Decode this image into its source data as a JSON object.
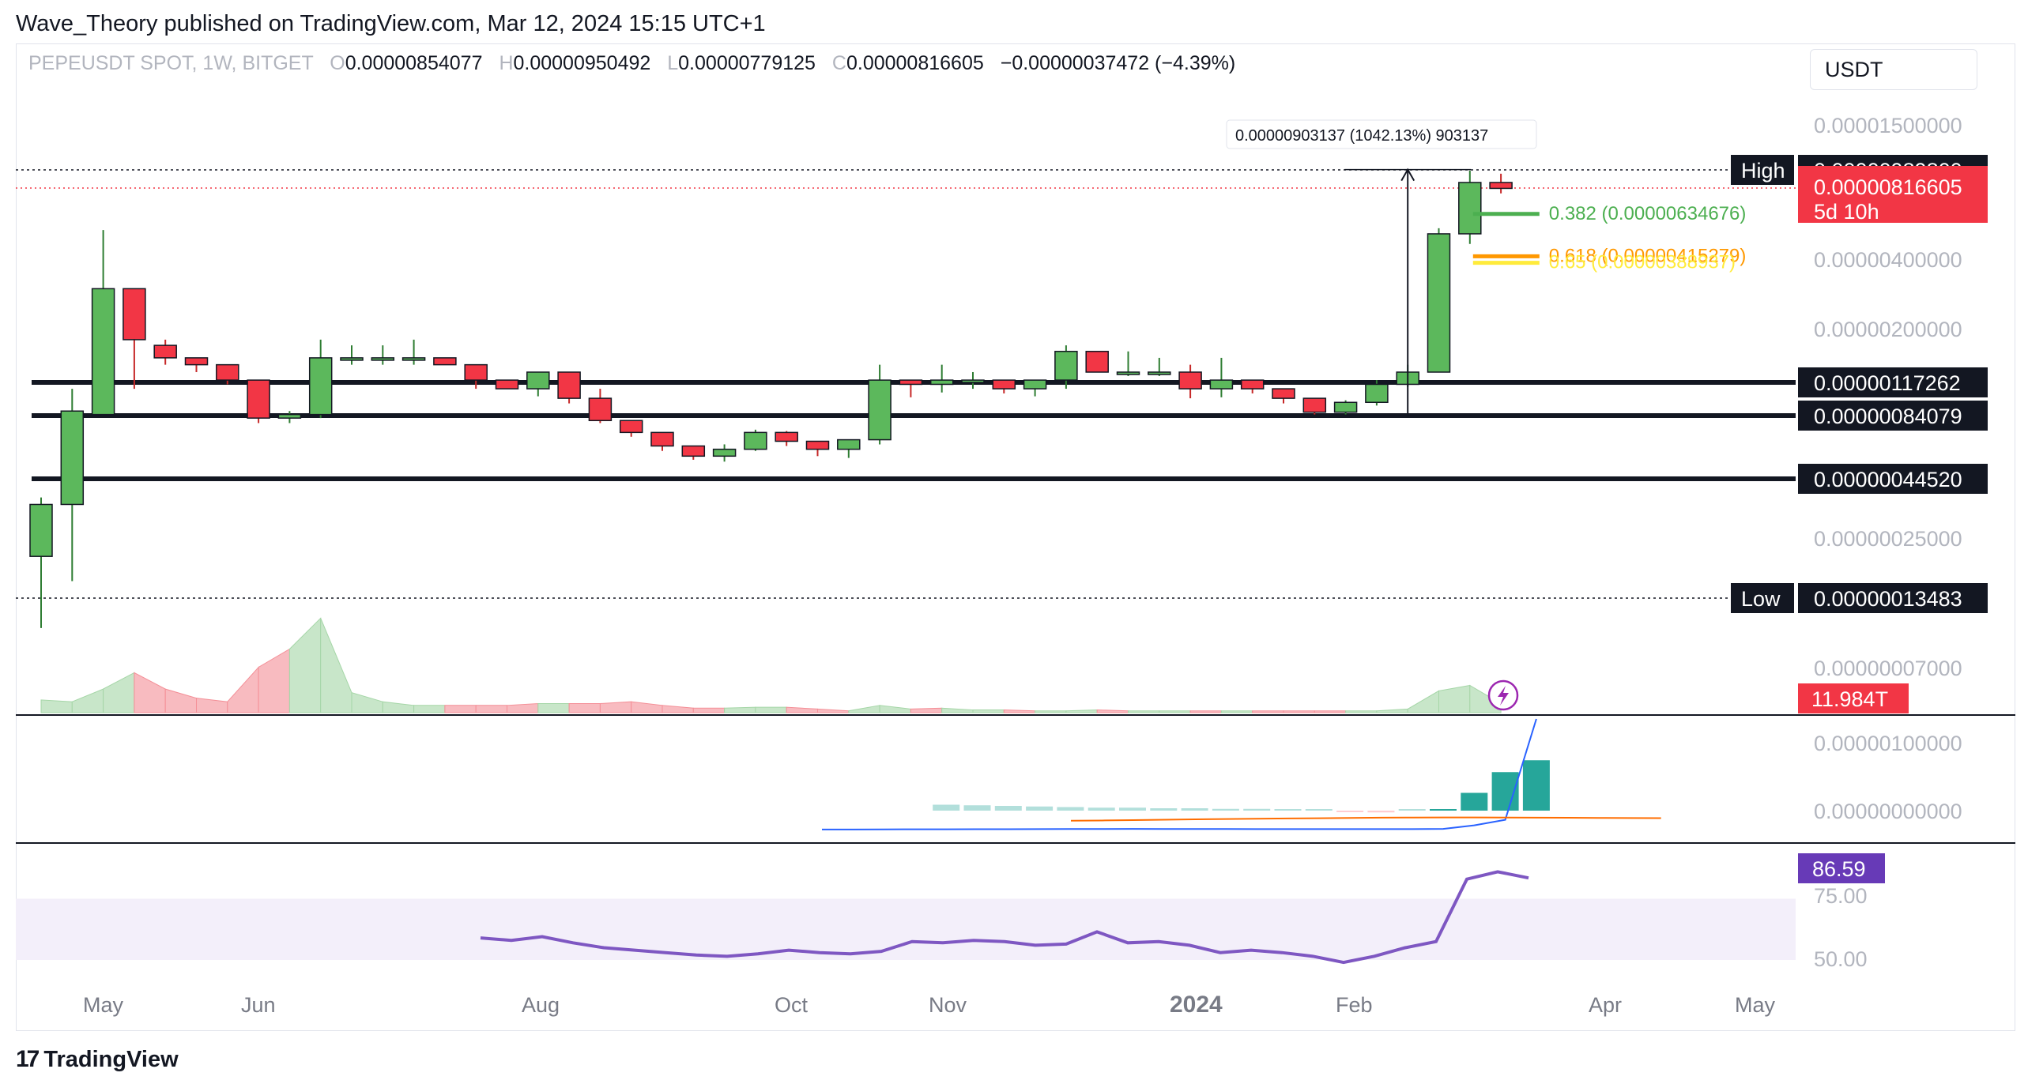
{
  "header": {
    "publisher_line": "Wave_Theory published on TradingView.com, Mar 12, 2024 15:15 UTC+1"
  },
  "symbol_bar": {
    "symbol": "PEPEUSDT SPOT, 1W, BITGET",
    "o_label": "O",
    "o_value": "0.00000854077",
    "h_label": "H",
    "h_value": "0.00000950492",
    "l_label": "L",
    "l_value": "0.00000779125",
    "c_label": "C",
    "c_value": "0.00000816605",
    "change": "−0.00000037472 (−4.39%)"
  },
  "currency": "USDT",
  "footer": {
    "logo_icon": "tradingview-logo-icon",
    "brand": "TradingView"
  },
  "colors": {
    "up": "#5cb85c",
    "down": "#f23645",
    "fib382": "#4caf50",
    "fib618": "#ff9800",
    "fib_other": "#ffeb3b",
    "rsi": "#7e57c2",
    "macd": "#2962ff",
    "signal": "#ff6d00",
    "hist": "#26a69a"
  },
  "chart_data": {
    "type": "candlestick",
    "scale": "log",
    "y_tick_labels": [
      "0.00001500000",
      "0.00000400000",
      "0.00000200000",
      "0.00000025000",
      "0.00000007000"
    ],
    "x_tick_labels": [
      "May",
      "Jun",
      "Aug",
      "Oct",
      "Nov",
      "2024",
      "Feb",
      "Apr",
      "May"
    ],
    "candles": [
      {
        "o": 2.05e-07,
        "h": 3.7e-07,
        "l": 1e-07,
        "c": 3.45e-07
      },
      {
        "o": 3.45e-07,
        "h": 1.1e-06,
        "l": 1.6e-07,
        "c": 8.8e-07
      },
      {
        "o": 8.5e-07,
        "h": 5.4e-06,
        "l": 8.5e-07,
        "c": 3e-06
      },
      {
        "o": 3e-06,
        "h": 3e-06,
        "l": 1.1e-06,
        "c": 1.8e-06
      },
      {
        "o": 1.7e-06,
        "h": 1.8e-06,
        "l": 1.4e-06,
        "c": 1.5e-06
      },
      {
        "o": 1.5e-06,
        "h": 1.5e-06,
        "l": 1.3e-06,
        "c": 1.4e-06
      },
      {
        "o": 1.4e-06,
        "h": 1.4e-06,
        "l": 1.15e-06,
        "c": 1.2e-06
      },
      {
        "o": 1.2e-06,
        "h": 1.2e-06,
        "l": 7.8e-07,
        "c": 8.2e-07
      },
      {
        "o": 8.2e-07,
        "h": 8.8e-07,
        "l": 7.8e-07,
        "c": 8.5e-07
      },
      {
        "o": 8.5e-07,
        "h": 1.8e-06,
        "l": 8.2e-07,
        "c": 1.5e-06
      },
      {
        "o": 1.5e-06,
        "h": 1.7e-06,
        "l": 1.4e-06,
        "c": 1.5e-06
      },
      {
        "o": 1.5e-06,
        "h": 1.7e-06,
        "l": 1.4e-06,
        "c": 1.5e-06
      },
      {
        "o": 1.5e-06,
        "h": 1.8e-06,
        "l": 1.4e-06,
        "c": 1.5e-06
      },
      {
        "o": 1.5e-06,
        "h": 1.5e-06,
        "l": 1.4e-06,
        "c": 1.4e-06
      },
      {
        "o": 1.4e-06,
        "h": 1.4e-06,
        "l": 1.1e-06,
        "c": 1.2e-06
      },
      {
        "o": 1.2e-06,
        "h": 1.2e-06,
        "l": 1.1e-06,
        "c": 1.1e-06
      },
      {
        "o": 1.1e-06,
        "h": 1.3e-06,
        "l": 1.02e-06,
        "c": 1.3e-06
      },
      {
        "o": 1.3e-06,
        "h": 1.3e-06,
        "l": 9.5e-07,
        "c": 1e-06
      },
      {
        "o": 1e-06,
        "h": 1.1e-06,
        "l": 7.8e-07,
        "c": 8e-07
      },
      {
        "o": 8e-07,
        "h": 8e-07,
        "l": 6.8e-07,
        "c": 7.1e-07
      },
      {
        "o": 7.1e-07,
        "h": 7.1e-07,
        "l": 5.9e-07,
        "c": 6.2e-07
      },
      {
        "o": 6.2e-07,
        "h": 6.2e-07,
        "l": 5.4e-07,
        "c": 5.6e-07
      },
      {
        "o": 5.6e-07,
        "h": 6.3e-07,
        "l": 5.3e-07,
        "c": 6e-07
      },
      {
        "o": 6e-07,
        "h": 7.3e-07,
        "l": 5.9e-07,
        "c": 7.1e-07
      },
      {
        "o": 7.1e-07,
        "h": 7.2e-07,
        "l": 6.2e-07,
        "c": 6.5e-07
      },
      {
        "o": 6.5e-07,
        "h": 6.5e-07,
        "l": 5.6e-07,
        "c": 6e-07
      },
      {
        "o": 6e-07,
        "h": 6.5e-07,
        "l": 5.5e-07,
        "c": 6.6e-07
      },
      {
        "o": 6.6e-07,
        "h": 1.4e-06,
        "l": 6.3e-07,
        "c": 1.2e-06
      },
      {
        "o": 1.2e-06,
        "h": 1.2e-06,
        "l": 1.01e-06,
        "c": 1.15e-06
      },
      {
        "o": 1.15e-06,
        "h": 1.4e-06,
        "l": 1.06e-06,
        "c": 1.2e-06
      },
      {
        "o": 1.2e-06,
        "h": 1.3e-06,
        "l": 1.1e-06,
        "c": 1.2e-06
      },
      {
        "o": 1.2e-06,
        "h": 1.2e-06,
        "l": 1.05e-06,
        "c": 1.1e-06
      },
      {
        "o": 1.1e-06,
        "h": 1.2e-06,
        "l": 1.02e-06,
        "c": 1.2e-06
      },
      {
        "o": 1.2e-06,
        "h": 1.7e-06,
        "l": 1.1e-06,
        "c": 1.6e-06
      },
      {
        "o": 1.6e-06,
        "h": 1.6e-06,
        "l": 1.3e-06,
        "c": 1.3e-06
      },
      {
        "o": 1.3e-06,
        "h": 1.6e-06,
        "l": 1.25e-06,
        "c": 1.3e-06
      },
      {
        "o": 1.3e-06,
        "h": 1.5e-06,
        "l": 1.25e-06,
        "c": 1.3e-06
      },
      {
        "o": 1.3e-06,
        "h": 1.4e-06,
        "l": 1e-06,
        "c": 1.1e-06
      },
      {
        "o": 1.1e-06,
        "h": 1.5e-06,
        "l": 1.01e-06,
        "c": 1.2e-06
      },
      {
        "o": 1.2e-06,
        "h": 1.2e-06,
        "l": 1.05e-06,
        "c": 1.1e-06
      },
      {
        "o": 1.1e-06,
        "h": 1.1e-06,
        "l": 9.5e-07,
        "c": 1e-06
      },
      {
        "o": 1e-06,
        "h": 1e-06,
        "l": 8.5e-07,
        "c": 8.7e-07
      },
      {
        "o": 8.7e-07,
        "h": 9.8e-07,
        "l": 8.5e-07,
        "c": 9.6e-07
      },
      {
        "o": 9.6e-07,
        "h": 1.2e-06,
        "l": 9.3e-07,
        "c": 1.15e-06
      },
      {
        "o": 1.15e-06,
        "h": 1.4e-06,
        "l": 1.12e-06,
        "c": 1.3e-06
      },
      {
        "o": 1.3e-06,
        "h": 5.5e-06,
        "l": 1.3e-06,
        "c": 5.2e-06
      },
      {
        "o": 5.2e-06,
        "h": 9.8e-06,
        "l": 4.7e-06,
        "c": 8.7e-06
      },
      {
        "o": 8.7e-06,
        "h": 9.5e-06,
        "l": 7.8e-06,
        "c": 8.2e-06
      }
    ],
    "volume": [
      0.07,
      0.06,
      0.13,
      0.22,
      0.13,
      0.08,
      0.06,
      0.25,
      0.35,
      0.52,
      0.11,
      0.06,
      0.04,
      0.04,
      0.04,
      0.04,
      0.05,
      0.05,
      0.05,
      0.06,
      0.04,
      0.025,
      0.025,
      0.03,
      0.03,
      0.02,
      0.01,
      0.04,
      0.02,
      0.025,
      0.015,
      0.015,
      0.01,
      0.01,
      0.015,
      0.01,
      0.01,
      0.01,
      0.01,
      0.01,
      0.01,
      0.01,
      0.01,
      0.01,
      0.02,
      0.12,
      0.15,
      0.05
    ],
    "volume_last_label": "11.984T",
    "macd": {
      "line": [
        9e-09,
        1.2e-08,
        1.8e-08,
        2.3e-08,
        2.8e-08,
        3.2e-08,
        3.5e-08,
        4e-08,
        4.8e-08,
        5.2e-08,
        5.3e-08,
        5.2e-08,
        5e-08,
        4.7e-08,
        4.4e-08,
        4.3e-08,
        4.2e-08,
        4e-08,
        3.8e-08,
        3.7e-08,
        5.5e-08,
        3.5e-07,
        8e-07,
        1.05e-05
      ],
      "signal": [
        1e-08,
        1.3e-08,
        1.7e-08,
        2.1e-08,
        2.5e-08,
        2.8e-08,
        3.1e-08,
        3.4e-08,
        3.6e-08,
        4e-08,
        4.3e-08,
        4.4e-08,
        4.5e-08,
        4.5e-08,
        4.4e-08,
        4.3e-08,
        4.2e-08,
        4e-08,
        3.9e-08,
        3.8e-08,
        3.8e-08,
        1e-07,
        2.6e-07,
        4e-07
      ],
      "hist": [
        0,
        0,
        0,
        0,
        1e-08,
        9e-09,
        8e-09,
        7e-09,
        6e-09,
        5e-09,
        5e-09,
        4e-09,
        4e-09,
        3e-09,
        3e-09,
        2e-09,
        2e-09,
        -2e-09,
        -3e-09,
        2e-09,
        8e-09,
        3e-07,
        6.5e-07,
        8.5e-07
      ],
      "tick_labels": [
        "0.00000100000",
        "0.00000000000"
      ]
    },
    "rsi": {
      "values": [
        59.0,
        58.0,
        59.5,
        57.0,
        55.0,
        54.0,
        53.0,
        52.0,
        51.5,
        52.5,
        54.0,
        53.0,
        52.5,
        53.5,
        57.5,
        57.0,
        58.0,
        57.5,
        56.0,
        56.5,
        61.5,
        57.0,
        57.5,
        56.0,
        53.0,
        54.0,
        53.0,
        51.5,
        49.0,
        51.5,
        55.0,
        57.5,
        83.0,
        86.0,
        83.5
      ],
      "last_label": "86.59",
      "tick_labels": [
        "75.00",
        "50.00"
      ],
      "band": [
        50,
        75
      ]
    },
    "horizontal_levels": [
      {
        "value": 9.898e-06,
        "label": "0.00000989800",
        "tag": "High"
      },
      {
        "value": 1.17262e-06,
        "label": "0.00000117262"
      },
      {
        "value": 8.4079e-07,
        "label": "0.00000084079"
      },
      {
        "value": 4.452e-07,
        "label": "0.00000044520"
      },
      {
        "value": 1.3483e-07,
        "label": "0.00000013483",
        "tag": "Low"
      }
    ],
    "last_price": {
      "label": "0.00000816605",
      "countdown": "5d 10h"
    },
    "fib_labels": [
      {
        "text": "0.382 (0.00000634676)",
        "value": 6.34676e-06
      },
      {
        "text": "0.618 (0.00000415279)",
        "value": 4.15279e-06
      },
      {
        "text": "0.65 (0.00000388937)",
        "value": 3.88937e-06
      }
    ],
    "measure_label": "0.00000903137 (1042.13%) 903137"
  }
}
